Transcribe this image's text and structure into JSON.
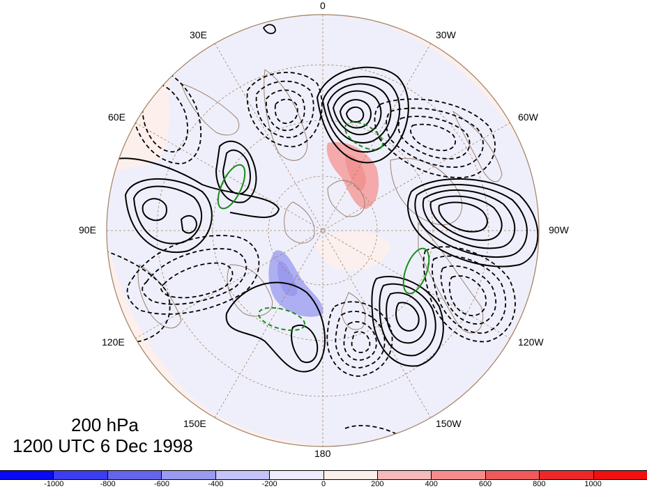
{
  "title": {
    "level": "200 hPa",
    "datetime": "1200 UTC 6 Dec 1998"
  },
  "longitude_labels": {
    "lon_0": "0",
    "lon_30w": "30W",
    "lon_60w": "60W",
    "lon_90w": "90W",
    "lon_120w": "120W",
    "lon_150w": "150W",
    "lon_180": "180",
    "lon_150e": "150E",
    "lon_120e": "120E",
    "lon_90e": "90E",
    "lon_60e": "60E",
    "lon_30e": "30E"
  },
  "colorbar": {
    "labels": [
      "-1000",
      "-800",
      "-600",
      "-400",
      "-200",
      "0",
      "200",
      "400",
      "600",
      "800",
      "1000"
    ],
    "colors": [
      "#0a0af0",
      "#3c3cf0",
      "#6464ec",
      "#9a9af0",
      "#c4c4f8",
      "#ececfc",
      "#fdf0ec",
      "#f7baba",
      "#f48c8c",
      "#f05a5a",
      "#ee2828",
      "#f01010"
    ]
  },
  "contours": {
    "positive_color": "#000000",
    "negative_color": "#000000",
    "highlight_color": "#1a8c1a",
    "coast_color": "#9a8070",
    "grid_color": "#a08060"
  }
}
